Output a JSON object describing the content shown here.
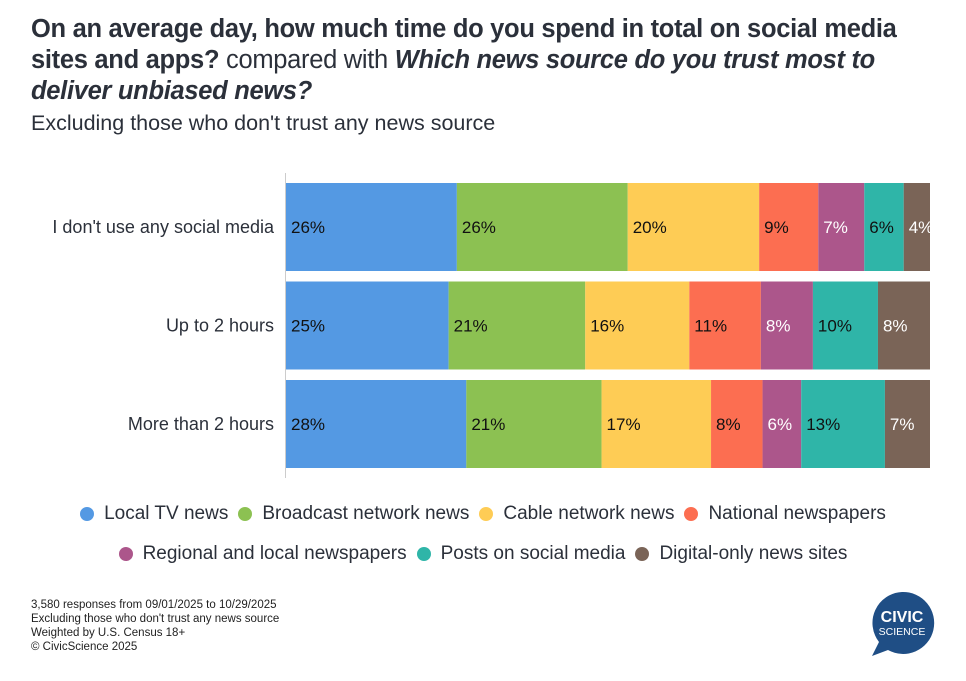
{
  "header": {
    "title_q1": "On an average day, how much time do you spend in total on social media sites and apps?",
    "title_mid": " compared with ",
    "title_q2": "Which news source do you trust most to deliver unbiased news?",
    "subtitle": "Excluding those who don't trust any news source"
  },
  "chart_data": {
    "type": "bar",
    "orientation": "horizontal",
    "stacked": "100%",
    "title": "On an average day, how much time do you spend in total on social media sites and apps? compared with Which news source do you trust most to deliver unbiased news?",
    "subtitle": "Excluding those who don't trust any news source",
    "xlabel": "",
    "ylabel": "",
    "grid": false,
    "legend_position": "bottom",
    "categories": [
      "I don't use any social media",
      "Up to 2 hours",
      "More than 2 hours"
    ],
    "series": [
      {
        "name": "Local TV news",
        "color": "#5499e3",
        "label_color": "#111111",
        "values": [
          26,
          25,
          28
        ]
      },
      {
        "name": "Broadcast network news",
        "color": "#8cc152",
        "label_color": "#111111",
        "values": [
          26,
          21,
          21
        ]
      },
      {
        "name": "Cable network news",
        "color": "#fecc55",
        "label_color": "#111111",
        "values": [
          20,
          16,
          17
        ]
      },
      {
        "name": "National newspapers",
        "color": "#fc6e51",
        "label_color": "#111111",
        "values": [
          9,
          11,
          8
        ]
      },
      {
        "name": "Regional and local newspapers",
        "color": "#ac568b",
        "label_color": "#ffffff",
        "values": [
          7,
          8,
          6
        ]
      },
      {
        "name": "Posts on social media",
        "color": "#2fb5a8",
        "label_color": "#111111",
        "values": [
          6,
          10,
          13
        ]
      },
      {
        "name": "Digital-only news sites",
        "color": "#7a6457",
        "label_color": "#ffffff",
        "values": [
          4,
          8,
          7
        ]
      }
    ],
    "value_suffix": "%"
  },
  "footnote": {
    "lines": [
      "3,580 responses from 09/01/2025 to 10/29/2025",
      "Excluding those who don't trust any news source",
      "Weighted by U.S. Census 18+",
      "© CivicScience 2025"
    ]
  },
  "logo": {
    "line1": "CIVIC",
    "line2": "SCIENCE",
    "color": "#1f4e85"
  }
}
